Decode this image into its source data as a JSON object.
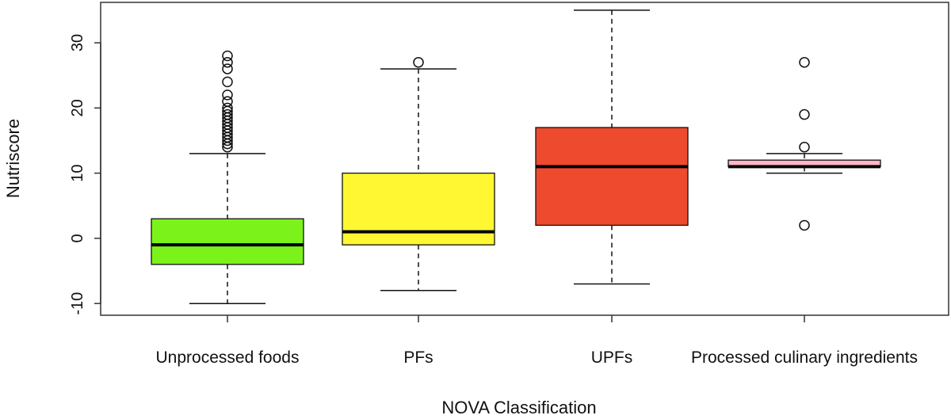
{
  "chart_data": {
    "type": "boxplot",
    "title": "",
    "xlabel": "NOVA Classification",
    "ylabel": "Nutriscore",
    "ylim": [
      -11.8,
      36.2
    ],
    "yticks": [
      -10,
      0,
      10,
      20,
      30
    ],
    "yticklabels": [
      "-10",
      "0",
      "10",
      "20",
      "30"
    ],
    "grid": false,
    "legend": "none",
    "categories": [
      "Unprocessed foods",
      "PFs",
      "UPFs",
      "Processed culinary ingredients"
    ],
    "boxes": [
      {
        "category": "Unprocessed foods",
        "color": "#7cf21b",
        "whisker_low": -10,
        "q1": -4,
        "median": -1,
        "q3": 3,
        "whisker_high": 13,
        "outliers": [
          14,
          14.5,
          15,
          15.5,
          16,
          16.5,
          17,
          17.5,
          18,
          18.5,
          19,
          19.5,
          20,
          21,
          22,
          24,
          26,
          27,
          28
        ]
      },
      {
        "category": "PFs",
        "color": "#fff732",
        "whisker_low": -8,
        "q1": -1,
        "median": 1,
        "q3": 10,
        "whisker_high": 26,
        "outliers": [
          27
        ]
      },
      {
        "category": "UPFs",
        "color": "#ee4a2e",
        "whisker_low": -7,
        "q1": 2,
        "median": 11,
        "q3": 17,
        "whisker_high": 35,
        "outliers": []
      },
      {
        "category": "Processed culinary ingredients",
        "color": "#ffb6c8",
        "whisker_low": 10,
        "q1": 11,
        "median": 11,
        "q3": 12,
        "whisker_high": 13,
        "outliers": [
          2,
          14,
          19,
          27
        ]
      }
    ]
  }
}
